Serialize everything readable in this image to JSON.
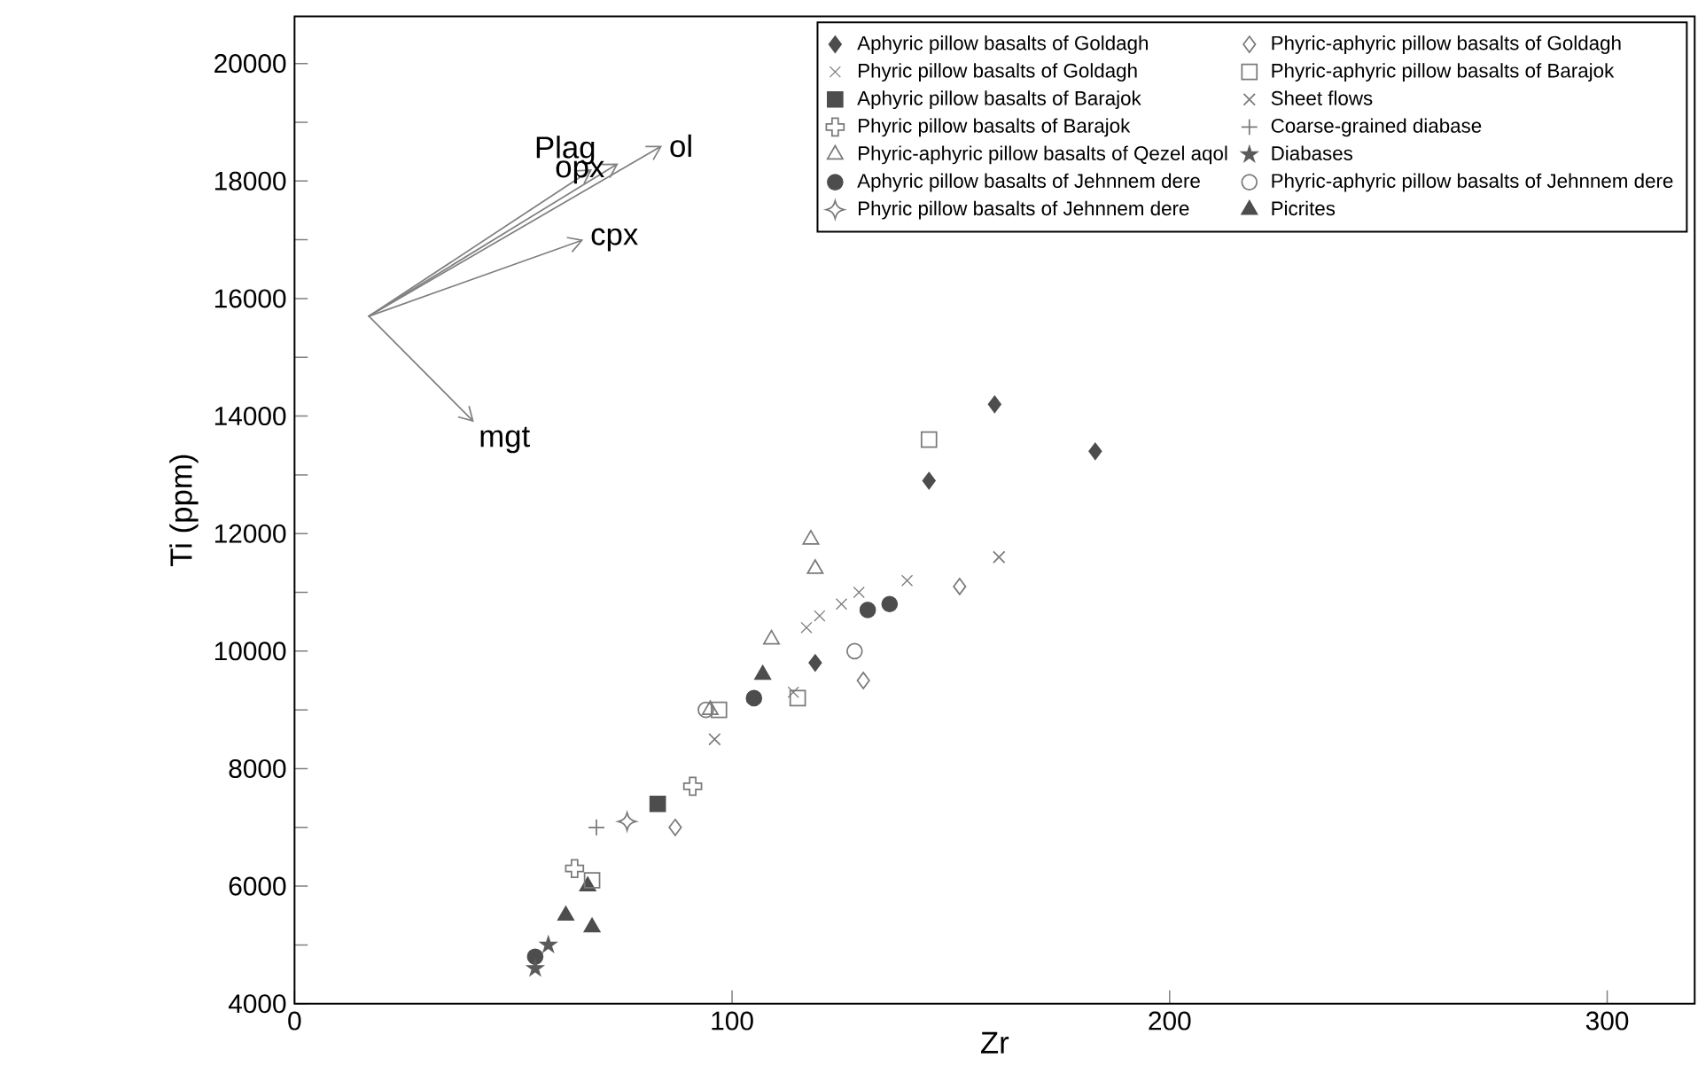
{
  "chart_data": {
    "type": "scatter",
    "xlabel": "Zr",
    "ylabel": "Ti (ppm)",
    "xlim": [
      0,
      320
    ],
    "ylim": [
      4000,
      20800
    ],
    "xticks": [
      0,
      100,
      200,
      300
    ],
    "yticks": [
      4000,
      6000,
      8000,
      10000,
      12000,
      14000,
      16000,
      18000,
      20000
    ],
    "legend": "top right",
    "series": [
      {
        "name": "Aphyric pillow basalts of Goldagh",
        "color": "#4d4d4d",
        "marker": "diamond",
        "x": [
          160,
          183,
          145,
          119
        ],
        "values": [
          14200,
          13400,
          12900,
          9800
        ]
      },
      {
        "name": "Phyric pillow basalts of Goldagh",
        "color": "#7a7a7a",
        "marker": "cross-open",
        "x": [
          117,
          120,
          125,
          129,
          140,
          114
        ],
        "values": [
          10400,
          10600,
          10800,
          11000,
          11200,
          9300
        ]
      },
      {
        "name": "Aphyric pillow basalts of Barajok",
        "color": "#4d4d4d",
        "marker": "square",
        "x": [
          83
        ],
        "values": [
          7400
        ]
      },
      {
        "name": "Phyric  pillow basalts of Barajok",
        "color": "#7a7a7a",
        "x": [
          91,
          64
        ],
        "values": [
          7700,
          6300
        ]
      },
      {
        "name": "Phyric-aphyric pillow basalts of Qezel aqol",
        "color": "#7a7a7a",
        "marker": "triangle-open",
        "x": [
          118,
          119,
          109,
          95
        ],
        "values": [
          11900,
          11400,
          10200,
          9000
        ]
      },
      {
        "name": "Aphyric pillow basalts of Jehnnem dere",
        "color": "#4d4d4d",
        "marker": "circle",
        "x": [
          55,
          105,
          136,
          131
        ],
        "values": [
          4800,
          9200,
          10800,
          10700
        ]
      },
      {
        "name": "Phyric-aphyric pillow basalts of Jehnnem dere",
        "color": "#7a7a7a",
        "marker": "circle-open",
        "x": [
          94,
          128
        ],
        "values": [
          9000,
          10000
        ]
      },
      {
        "name": "Phyric pillow basalts of Jehnnem dere",
        "color": "#7a7a7a",
        "marker": "star-open",
        "x": [
          76
        ],
        "values": [
          7100
        ]
      },
      {
        "name": "Picrites",
        "color": "#4d4d4d",
        "marker": "triangle",
        "x": [
          67,
          62,
          68,
          107
        ],
        "values": [
          6000,
          5500,
          5300,
          9600
        ]
      },
      {
        "name": "Phyric-aphyric pillow basalts of Goldagh",
        "color": "#7a7a7a",
        "marker": "diamond-open",
        "x": [
          87,
          152,
          130
        ],
        "values": [
          7000,
          11100,
          9500
        ]
      },
      {
        "name": "Phyric-aphyric pillow basalts of Barajok",
        "color": "#7a7a7a",
        "marker": "square-open",
        "x": [
          145,
          68,
          97,
          115
        ],
        "values": [
          13600,
          6100,
          9000,
          9200
        ]
      },
      {
        "name": "Sheet flows",
        "color": "#7a7a7a",
        "marker": "cross",
        "x": [
          96,
          161
        ],
        "values": [
          8500,
          11600
        ]
      },
      {
        "name": "Coarse-grained diabase",
        "color": "#7a7a7a",
        "marker": "plus",
        "x": [
          69
        ],
        "values": [
          7000
        ]
      },
      {
        "name": "Diabases",
        "color": "#5a5a5a",
        "marker": "star",
        "x": [
          58,
          55
        ],
        "values": [
          5000,
          4600
        ]
      },
      {
        "type": "line",
        "color": "#808080",
        "x": [
          17,
          68
        ],
        "values": [
          15700,
          18200
        ]
      },
      {
        "type": "line",
        "color": "#808080",
        "x": [
          17,
          74
        ],
        "values": [
          15700,
          18300
        ]
      },
      {
        "type": "line",
        "color": "#808080",
        "x": [
          17,
          84
        ],
        "values": [
          15700,
          18600
        ]
      },
      {
        "type": "line",
        "color": "#808080",
        "x": [
          17,
          66
        ],
        "values": [
          15700,
          17000
        ]
      },
      {
        "type": "line",
        "color": "#808080",
        "x": [
          17,
          41
        ],
        "values": [
          15700,
          13900
        ]
      }
    ],
    "annotations": [
      "Plag",
      "opx",
      "ol",
      "cpx",
      "mgt"
    ]
  }
}
